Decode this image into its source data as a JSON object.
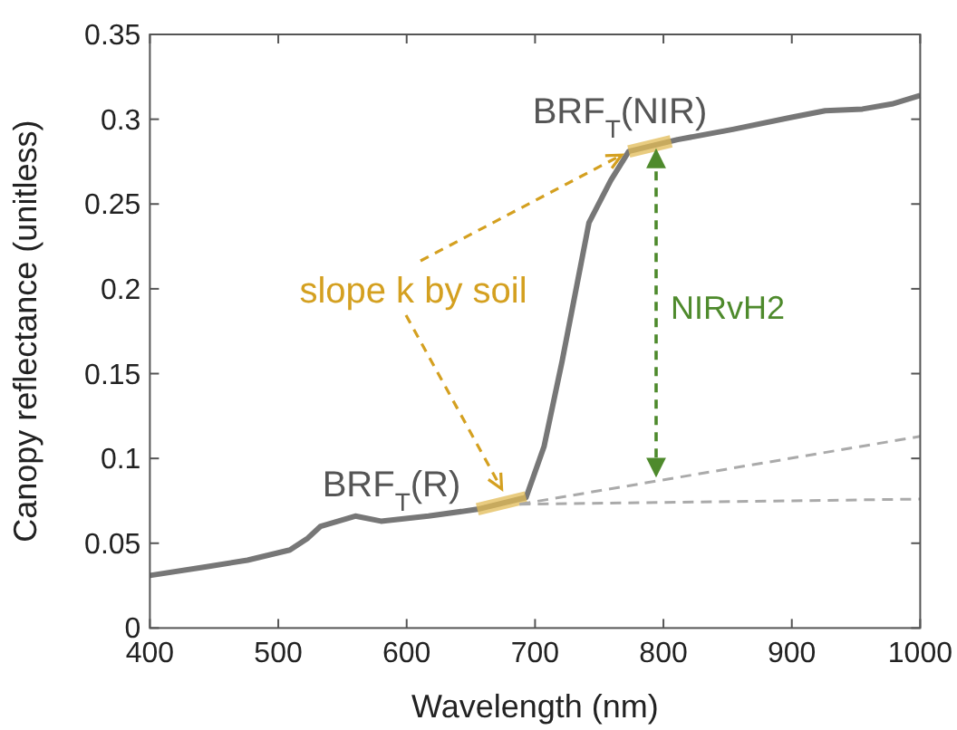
{
  "chart_data": {
    "type": "line",
    "xlabel": "Wavelength (nm)",
    "ylabel": "Canopy reflectance (unitless)",
    "xlim": [
      400,
      1000
    ],
    "ylim": [
      0,
      0.35
    ],
    "xticks": [
      400,
      500,
      600,
      700,
      800,
      900,
      1000
    ],
    "yticks": [
      0,
      0.05,
      0.1,
      0.15,
      0.2,
      0.25,
      0.3,
      0.35
    ],
    "grid": false,
    "series": [
      {
        "color": "#777777",
        "x": [
          400,
          443,
          476,
          509,
          523,
          533,
          560,
          580,
          617,
          655,
          693,
          707,
          721,
          742,
          759,
          773,
          811,
          854,
          899,
          926,
          955,
          978,
          1000
        ],
        "values": [
          0.031,
          0.036,
          0.04,
          0.046,
          0.053,
          0.06,
          0.066,
          0.063,
          0.066,
          0.07,
          0.077,
          0.107,
          0.157,
          0.239,
          0.264,
          0.281,
          0.288,
          0.294,
          0.301,
          0.305,
          0.306,
          0.309,
          0.314
        ]
      },
      {
        "color": "#e2bb55",
        "x": [
          655,
          693
        ],
        "values": [
          0.07,
          0.077
        ]
      },
      {
        "color": "#e2bb55",
        "x": [
          773,
          806
        ],
        "values": [
          0.281,
          0.287
        ]
      },
      {
        "color": "#aaaaaa",
        "line_style": "dashed",
        "x": [
          688,
          1000
        ],
        "values": [
          0.073,
          0.113
        ]
      },
      {
        "color": "#aaaaaa",
        "line_style": "dashed",
        "x": [
          688,
          1000
        ],
        "values": [
          0.073,
          0.076
        ]
      }
    ],
    "annotations": [
      "BRF$_{T}$(NIR)",
      "BRF$_{T}$(R)",
      {
        "text": "slope k by soil",
        "x": 773,
        "y": 0.281
      },
      "NIRvH2"
    ]
  }
}
